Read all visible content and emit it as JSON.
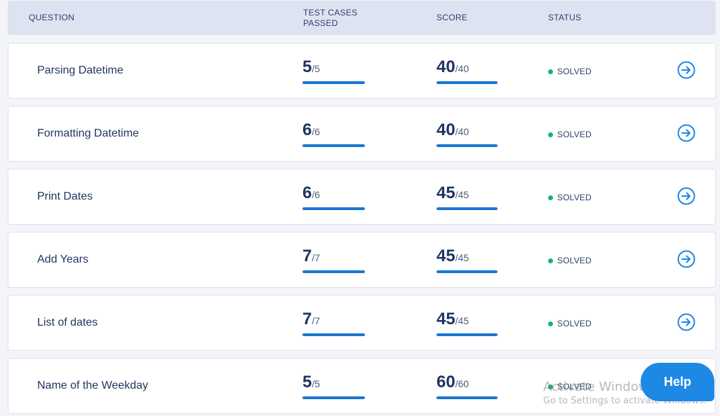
{
  "header": {
    "question": "QUESTION",
    "test_cases_line1": "TEST CASES",
    "test_cases_line2": "PASSED",
    "score": "SCORE",
    "status": "STATUS"
  },
  "rows": [
    {
      "name": "Parsing Datetime",
      "passed": "5",
      "passed_total": "/5",
      "passed_fraction": 1.0,
      "score": "40",
      "score_total": "/40",
      "score_fraction": 1.0,
      "status": "SOLVED"
    },
    {
      "name": "Formatting Datetime",
      "passed": "6",
      "passed_total": "/6",
      "passed_fraction": 1.0,
      "score": "40",
      "score_total": "/40",
      "score_fraction": 1.0,
      "status": "SOLVED"
    },
    {
      "name": "Print Dates",
      "passed": "6",
      "passed_total": "/6",
      "passed_fraction": 1.0,
      "score": "45",
      "score_total": "/45",
      "score_fraction": 1.0,
      "status": "SOLVED"
    },
    {
      "name": "Add Years",
      "passed": "7",
      "passed_total": "/7",
      "passed_fraction": 1.0,
      "score": "45",
      "score_total": "/45",
      "score_fraction": 1.0,
      "status": "SOLVED"
    },
    {
      "name": "List of dates",
      "passed": "7",
      "passed_total": "/7",
      "passed_fraction": 1.0,
      "score": "45",
      "score_total": "/45",
      "score_fraction": 1.0,
      "status": "SOLVED"
    },
    {
      "name": "Name of the Weekday",
      "passed": "5",
      "passed_total": "/5",
      "passed_fraction": 1.0,
      "score": "60",
      "score_total": "/60",
      "score_fraction": 1.0,
      "status": "SOLVED"
    }
  ],
  "row_icon": "arrow-circle-right-icon",
  "help_button": "Help",
  "watermark": {
    "line1": "Activate Windows",
    "line2": "Go to Settings to activate Windows."
  },
  "colors": {
    "accent": "#1976d2",
    "solved_dot": "#19b36b",
    "header_bg": "#dee3f1"
  }
}
